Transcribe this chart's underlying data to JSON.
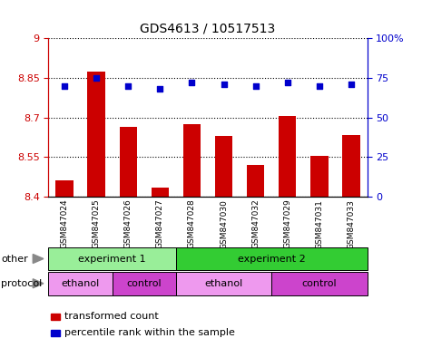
{
  "title": "GDS4613 / 10517513",
  "samples": [
    "GSM847024",
    "GSM847025",
    "GSM847026",
    "GSM847027",
    "GSM847028",
    "GSM847030",
    "GSM847032",
    "GSM847029",
    "GSM847031",
    "GSM847033"
  ],
  "bar_values": [
    8.46,
    8.875,
    8.665,
    8.435,
    8.675,
    8.63,
    8.52,
    8.705,
    8.555,
    8.635
  ],
  "dot_values": [
    70,
    75,
    70,
    68,
    72,
    71,
    70,
    72,
    70,
    71
  ],
  "ylim": [
    8.4,
    9.0
  ],
  "y2lim": [
    0,
    100
  ],
  "yticks": [
    8.4,
    8.55,
    8.7,
    8.85,
    9.0
  ],
  "ytick_labels": [
    "8.4",
    "8.55",
    "8.7",
    "8.85",
    "9"
  ],
  "y2ticks": [
    0,
    25,
    50,
    75,
    100
  ],
  "y2tick_labels": [
    "0",
    "25",
    "50",
    "75",
    "100%"
  ],
  "bar_color": "#cc0000",
  "dot_color": "#0000cc",
  "bar_width": 0.55,
  "other_row": [
    {
      "label": "experiment 1",
      "start": 0,
      "end": 4,
      "color": "#99ee99"
    },
    {
      "label": "experiment 2",
      "start": 4,
      "end": 10,
      "color": "#33cc33"
    }
  ],
  "protocol_row": [
    {
      "label": "ethanol",
      "start": 0,
      "end": 2,
      "color": "#ee99ee"
    },
    {
      "label": "control",
      "start": 2,
      "end": 4,
      "color": "#cc44cc"
    },
    {
      "label": "ethanol",
      "start": 4,
      "end": 7,
      "color": "#ee99ee"
    },
    {
      "label": "control",
      "start": 7,
      "end": 10,
      "color": "#cc44cc"
    }
  ],
  "legend_items": [
    {
      "label": "transformed count",
      "color": "#cc0000"
    },
    {
      "label": "percentile rank within the sample",
      "color": "#0000cc"
    }
  ],
  "other_label": "other",
  "protocol_label": "protocol",
  "background_color": "#ffffff",
  "tick_label_color_left": "#cc0000",
  "tick_label_color_right": "#0000cc"
}
